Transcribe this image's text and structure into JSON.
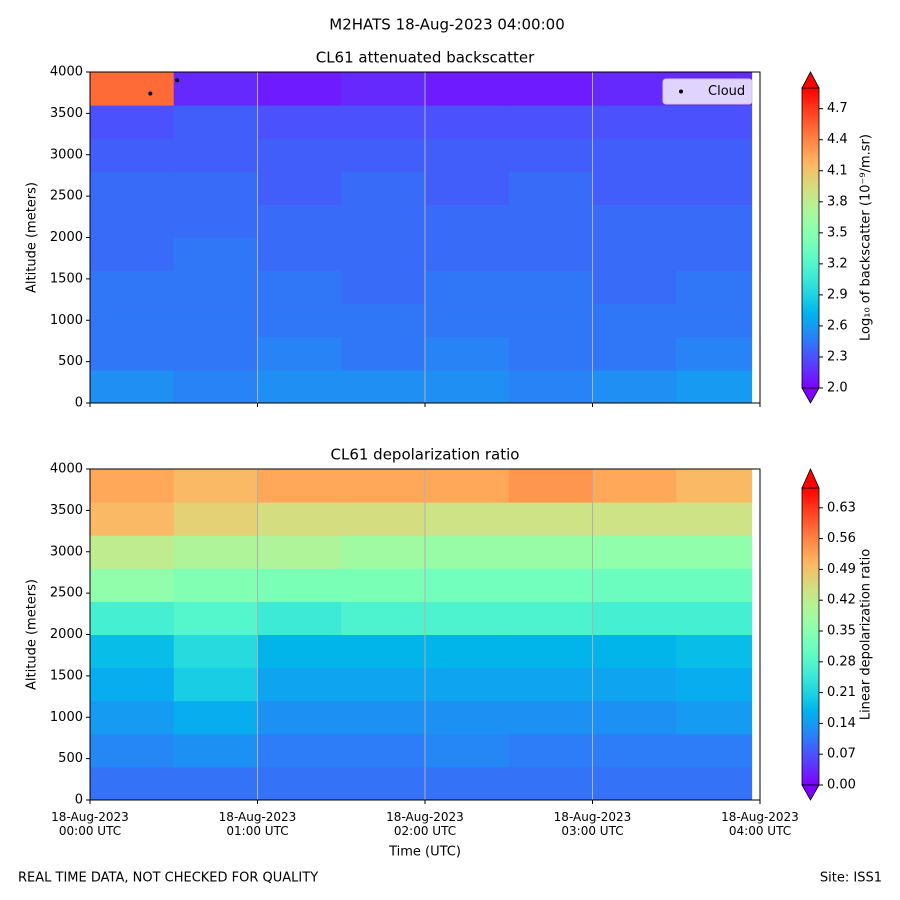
{
  "title": "M2HATS 18-Aug-2023 04:00:00",
  "footer_left": "REAL TIME DATA, NOT CHECKED FOR QUALITY",
  "footer_right": "Site: ISS1",
  "chart_data": [
    {
      "type": "heatmap",
      "title": "CL61 attenuated backscatter",
      "y_label": "Altitude (meters)",
      "colorbar_label": "Log₁₀ of backscatter (10⁻⁹/m.sr)",
      "colormap": "rainbow",
      "x_bins": [
        0,
        0.5,
        1,
        1.5,
        2,
        2.5,
        3,
        3.5,
        3.95
      ],
      "xlim": [
        0,
        4
      ],
      "xticks": [
        0,
        1,
        2,
        3,
        4
      ],
      "alt_bins": [
        0,
        400,
        800,
        1200,
        1600,
        2000,
        2400,
        2800,
        3200,
        3600,
        4000
      ],
      "ylim": [
        0,
        4000
      ],
      "yticks": [
        0,
        500,
        1000,
        1500,
        2000,
        2500,
        3000,
        3500,
        4000
      ],
      "grid": true,
      "z": [
        [
          2.55,
          2.5,
          2.55,
          2.55,
          2.55,
          2.5,
          2.55,
          2.6
        ],
        [
          2.45,
          2.45,
          2.5,
          2.45,
          2.5,
          2.45,
          2.45,
          2.5
        ],
        [
          2.45,
          2.45,
          2.45,
          2.45,
          2.45,
          2.45,
          2.45,
          2.45
        ],
        [
          2.45,
          2.45,
          2.45,
          2.4,
          2.45,
          2.45,
          2.4,
          2.45
        ],
        [
          2.4,
          2.45,
          2.4,
          2.4,
          2.4,
          2.4,
          2.4,
          2.4
        ],
        [
          2.4,
          2.4,
          2.4,
          2.4,
          2.4,
          2.4,
          2.4,
          2.4
        ],
        [
          2.4,
          2.4,
          2.35,
          2.4,
          2.35,
          2.4,
          2.35,
          2.35
        ],
        [
          2.35,
          2.35,
          2.35,
          2.35,
          2.35,
          2.35,
          2.35,
          2.35
        ],
        [
          2.3,
          2.35,
          2.3,
          2.3,
          2.3,
          2.3,
          2.3,
          2.3
        ],
        [
          4.5,
          2.15,
          2.1,
          2.15,
          2.1,
          2.1,
          2.15,
          2.15
        ]
      ],
      "clim": [
        2.0,
        4.9
      ],
      "cticks": [
        {
          "value": 2,
          "label": "2.0"
        },
        2.3,
        2.6,
        2.9,
        3.2,
        3.5,
        3.8,
        4.1,
        4.4,
        4.7
      ],
      "cloud": {
        "name": "Cloud",
        "color": "#000000",
        "x": [
          0.36,
          0.52
        ],
        "y": [
          3740,
          3900
        ]
      },
      "legend": "upper right"
    },
    {
      "type": "heatmap",
      "title": "CL61 depolarization ratio",
      "y_label": "Altitude (meters)",
      "x_label": "Time (UTC)",
      "colorbar_label": "Linear depolarization ratio",
      "colormap": "rainbow",
      "x_bins": [
        0,
        0.5,
        1,
        1.5,
        2,
        2.5,
        3,
        3.5,
        3.95
      ],
      "xlim": [
        0,
        4
      ],
      "xticks": [
        {
          "value": 0,
          "label": "18-Aug-2023\n00:00 UTC"
        },
        {
          "value": 1,
          "label": "18-Aug-2023\n01:00 UTC"
        },
        {
          "value": 2,
          "label": "18-Aug-2023\n02:00 UTC"
        },
        {
          "value": 3,
          "label": "18-Aug-2023\n03:00 UTC"
        },
        {
          "value": 4,
          "label": "18-Aug-2023\n04:00 UTC"
        }
      ],
      "alt_bins": [
        0,
        400,
        800,
        1200,
        1600,
        2000,
        2400,
        2800,
        3200,
        3600,
        4000
      ],
      "ylim": [
        0,
        4000
      ],
      "yticks": [
        0,
        500,
        1000,
        1500,
        2000,
        2500,
        3000,
        3500,
        4000
      ],
      "grid": true,
      "z": [
        [
          0.1,
          0.1,
          0.1,
          0.1,
          0.1,
          0.1,
          0.1,
          0.1
        ],
        [
          0.12,
          0.13,
          0.11,
          0.11,
          0.12,
          0.11,
          0.11,
          0.11
        ],
        [
          0.14,
          0.16,
          0.13,
          0.13,
          0.13,
          0.13,
          0.13,
          0.14
        ],
        [
          0.16,
          0.2,
          0.15,
          0.15,
          0.15,
          0.15,
          0.15,
          0.16
        ],
        [
          0.18,
          0.22,
          0.17,
          0.17,
          0.17,
          0.17,
          0.17,
          0.18
        ],
        [
          0.26,
          0.28,
          0.25,
          0.27,
          0.27,
          0.27,
          0.26,
          0.26
        ],
        [
          0.36,
          0.34,
          0.33,
          0.33,
          0.32,
          0.32,
          0.31,
          0.31
        ],
        [
          0.42,
          0.4,
          0.4,
          0.38,
          0.37,
          0.37,
          0.36,
          0.36
        ],
        [
          0.5,
          0.47,
          0.45,
          0.45,
          0.44,
          0.44,
          0.44,
          0.44
        ],
        [
          0.52,
          0.5,
          0.52,
          0.52,
          0.52,
          0.54,
          0.52,
          0.5
        ]
      ],
      "clim": [
        0,
        0.675
      ],
      "cticks": [
        {
          "value": 0,
          "label": "0.00"
        },
        0.07,
        0.14,
        0.21,
        0.28,
        0.35,
        0.42,
        0.49,
        0.56,
        0.63
      ]
    }
  ]
}
